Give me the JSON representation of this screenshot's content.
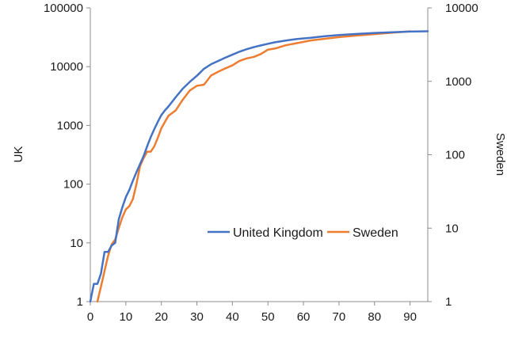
{
  "chart_data": {
    "type": "line",
    "title": "",
    "xlabel": "",
    "ylabel_left": "UK",
    "ylabel_right": "Sweden",
    "xlim": [
      0,
      95
    ],
    "x_ticks": [
      "0",
      "10",
      "20",
      "30",
      "40",
      "50",
      "60",
      "70",
      "80",
      "90"
    ],
    "y_left_scale": "log",
    "y_left_lim": [
      1,
      100000
    ],
    "y_left_ticks": [
      "1",
      "10",
      "100",
      "1000",
      "10000",
      "100000"
    ],
    "y_right_scale": "log",
    "y_right_lim": [
      1,
      10000
    ],
    "y_right_ticks": [
      "1",
      "10",
      "100",
      "1000",
      "10000"
    ],
    "grid": false,
    "legend_position": "lower-right, inside plot",
    "series": [
      {
        "name": "United Kingdom",
        "axis": "left",
        "color": "#4472c4",
        "x": [
          0,
          1,
          2,
          3,
          4,
          5,
          6,
          7,
          8,
          9,
          10,
          11,
          12,
          13,
          14,
          15,
          16,
          17,
          18,
          19,
          20,
          21,
          22,
          24,
          26,
          28,
          30,
          32,
          34,
          36,
          38,
          40,
          42,
          44,
          46,
          48,
          50,
          52,
          55,
          58,
          62,
          66,
          70,
          75,
          80,
          85,
          90,
          95
        ],
        "y": [
          1,
          2,
          2,
          3,
          7,
          7,
          9,
          10,
          25,
          40,
          60,
          80,
          115,
          160,
          220,
          300,
          440,
          630,
          860,
          1150,
          1500,
          1800,
          2100,
          3000,
          4200,
          5500,
          7000,
          9200,
          11000,
          12500,
          14200,
          16000,
          18000,
          19800,
          21500,
          23000,
          24500,
          26000,
          27800,
          29500,
          31000,
          33000,
          34500,
          36000,
          37500,
          38500,
          39500,
          40000
        ]
      },
      {
        "name": "Sweden",
        "axis": "right",
        "color": "#ed7d31",
        "x": [
          2,
          3,
          4,
          5,
          6,
          7,
          8,
          9,
          10,
          11,
          12,
          13,
          14,
          15,
          16,
          17,
          18,
          19,
          20,
          21,
          22,
          24,
          26,
          28,
          30,
          32,
          34,
          36,
          38,
          40,
          42,
          44,
          46,
          48,
          50,
          52,
          55,
          58,
          62,
          66,
          70,
          75,
          80,
          85,
          90
        ],
        "y": [
          1,
          1.6,
          2.6,
          4.2,
          6,
          7,
          10,
          14,
          18,
          20,
          25,
          40,
          70,
          90,
          110,
          110,
          130,
          170,
          230,
          280,
          340,
          400,
          560,
          750,
          870,
          900,
          1200,
          1350,
          1500,
          1650,
          1900,
          2050,
          2150,
          2350,
          2700,
          2800,
          3100,
          3300,
          3600,
          3800,
          4000,
          4200,
          4400,
          4600,
          4800
        ]
      }
    ]
  }
}
